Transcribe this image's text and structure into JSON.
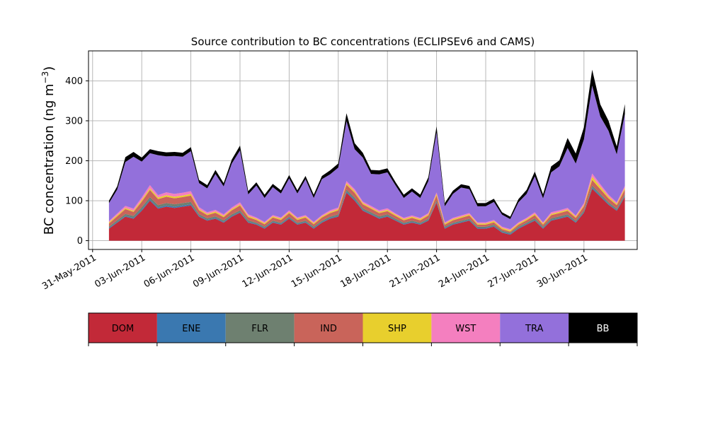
{
  "chart_data": {
    "type": "area",
    "stacked": true,
    "title": "Source contribution to BC concentrations (ECLIPSEv6 and CAMS)",
    "ylabel": "BC concentration (ng m",
    "ylabel_sup": "−3",
    "ylabel_close": ")",
    "xlabel": "",
    "ylim": [
      -22,
      475
    ],
    "xlim": [
      "2011-05-30T18:00",
      "2011-07-03T06:00"
    ],
    "grid": true,
    "x_ticks": [
      {
        "date": "2011-05-31",
        "label": "31-May-2011"
      },
      {
        "date": "2011-06-03",
        "label": "03-Jun-2011"
      },
      {
        "date": "2011-06-06",
        "label": "06-Jun-2011"
      },
      {
        "date": "2011-06-09",
        "label": "09-Jun-2011"
      },
      {
        "date": "2011-06-12",
        "label": "12-Jun-2011"
      },
      {
        "date": "2011-06-15",
        "label": "15-Jun-2011"
      },
      {
        "date": "2011-06-18",
        "label": "18-Jun-2011"
      },
      {
        "date": "2011-06-21",
        "label": "21-Jun-2011"
      },
      {
        "date": "2011-06-24",
        "label": "24-Jun-2011"
      },
      {
        "date": "2011-06-27",
        "label": "27-Jun-2011"
      },
      {
        "date": "2011-06-30",
        "label": "30-Jun-2011"
      }
    ],
    "y_ticks": [
      0,
      100,
      200,
      300,
      400
    ],
    "legend_placement": "bottom",
    "x": [
      "2011-06-01T00:00",
      "2011-06-01T12:00",
      "2011-06-02T00:00",
      "2011-06-02T12:00",
      "2011-06-03T00:00",
      "2011-06-03T12:00",
      "2011-06-04T00:00",
      "2011-06-04T12:00",
      "2011-06-05T00:00",
      "2011-06-05T12:00",
      "2011-06-06T00:00",
      "2011-06-06T12:00",
      "2011-06-07T00:00",
      "2011-06-07T12:00",
      "2011-06-08T00:00",
      "2011-06-08T12:00",
      "2011-06-09T00:00",
      "2011-06-09T12:00",
      "2011-06-10T00:00",
      "2011-06-10T12:00",
      "2011-06-11T00:00",
      "2011-06-11T12:00",
      "2011-06-12T00:00",
      "2011-06-12T12:00",
      "2011-06-13T00:00",
      "2011-06-13T12:00",
      "2011-06-14T00:00",
      "2011-06-14T12:00",
      "2011-06-15T00:00",
      "2011-06-15T12:00",
      "2011-06-16T00:00",
      "2011-06-16T12:00",
      "2011-06-17T00:00",
      "2011-06-17T12:00",
      "2011-06-18T00:00",
      "2011-06-18T12:00",
      "2011-06-19T00:00",
      "2011-06-19T12:00",
      "2011-06-20T00:00",
      "2011-06-20T12:00",
      "2011-06-21T00:00",
      "2011-06-21T12:00",
      "2011-06-22T00:00",
      "2011-06-22T12:00",
      "2011-06-23T00:00",
      "2011-06-23T12:00",
      "2011-06-24T00:00",
      "2011-06-24T12:00",
      "2011-06-25T00:00",
      "2011-06-25T12:00",
      "2011-06-26T00:00",
      "2011-06-26T12:00",
      "2011-06-27T00:00",
      "2011-06-27T12:00",
      "2011-06-28T00:00",
      "2011-06-28T12:00",
      "2011-06-29T00:00",
      "2011-06-29T12:00",
      "2011-06-30T00:00",
      "2011-06-30T12:00",
      "2011-07-01T00:00",
      "2011-07-01T12:00",
      "2011-07-02T00:00",
      "2011-07-02T12:00"
    ],
    "series": [
      {
        "name": "DOM",
        "color": "#c22938",
        "values": [
          30,
          45,
          60,
          55,
          75,
          100,
          80,
          85,
          82,
          85,
          88,
          60,
          50,
          55,
          45,
          60,
          70,
          45,
          40,
          30,
          45,
          40,
          55,
          40,
          45,
          30,
          45,
          55,
          60,
          120,
          100,
          75,
          65,
          55,
          60,
          50,
          40,
          45,
          40,
          50,
          95,
          30,
          40,
          45,
          50,
          30,
          30,
          35,
          20,
          15,
          30,
          40,
          50,
          30,
          50,
          55,
          60,
          45,
          70,
          130,
          110,
          90,
          75,
          110
        ]
      },
      {
        "name": "ENE",
        "color": "#3a78b0",
        "values": [
          2,
          2,
          2,
          2,
          3,
          3,
          3,
          3,
          3,
          3,
          3,
          2,
          2,
          2,
          2,
          2,
          2,
          2,
          2,
          2,
          2,
          2,
          2,
          2,
          2,
          2,
          2,
          2,
          2,
          3,
          3,
          2,
          2,
          2,
          2,
          2,
          2,
          2,
          2,
          2,
          2,
          2,
          2,
          2,
          2,
          2,
          2,
          2,
          2,
          2,
          2,
          2,
          2,
          2,
          2,
          2,
          2,
          2,
          2,
          3,
          3,
          2,
          2,
          2
        ]
      },
      {
        "name": "FLR",
        "color": "#6e8070",
        "values": [
          3,
          4,
          5,
          5,
          6,
          6,
          6,
          6,
          6,
          6,
          6,
          4,
          4,
          4,
          4,
          4,
          4,
          4,
          3,
          3,
          3,
          3,
          3,
          3,
          3,
          3,
          3,
          3,
          4,
          5,
          5,
          4,
          4,
          4,
          4,
          3,
          3,
          3,
          3,
          3,
          4,
          3,
          3,
          3,
          3,
          3,
          3,
          3,
          3,
          3,
          3,
          3,
          4,
          3,
          4,
          4,
          4,
          3,
          4,
          5,
          4,
          4,
          3,
          4
        ]
      },
      {
        "name": "IND",
        "color": "#c9645a",
        "values": [
          8,
          10,
          12,
          10,
          14,
          18,
          15,
          16,
          15,
          15,
          16,
          10,
          8,
          9,
          8,
          10,
          12,
          8,
          7,
          6,
          8,
          7,
          9,
          7,
          8,
          6,
          8,
          9,
          10,
          12,
          12,
          10,
          9,
          8,
          8,
          7,
          6,
          7,
          6,
          8,
          12,
          5,
          6,
          7,
          8,
          5,
          5,
          6,
          4,
          3,
          5,
          6,
          8,
          5,
          8,
          8,
          9,
          7,
          10,
          14,
          12,
          10,
          9,
          12
        ]
      },
      {
        "name": "SHP",
        "color": "#e8cf2d",
        "values": [
          3,
          3,
          3,
          3,
          4,
          4,
          4,
          4,
          4,
          4,
          4,
          3,
          3,
          3,
          3,
          3,
          3,
          3,
          3,
          3,
          3,
          3,
          3,
          3,
          3,
          3,
          3,
          3,
          3,
          4,
          4,
          3,
          3,
          3,
          3,
          3,
          3,
          3,
          3,
          3,
          4,
          3,
          3,
          3,
          3,
          3,
          3,
          3,
          3,
          3,
          3,
          3,
          3,
          3,
          3,
          3,
          3,
          3,
          3,
          8,
          6,
          4,
          3,
          4
        ]
      },
      {
        "name": "WST",
        "color": "#f47fbf",
        "values": [
          3,
          4,
          5,
          5,
          6,
          8,
          6,
          7,
          7,
          7,
          7,
          5,
          4,
          4,
          4,
          4,
          5,
          4,
          3,
          3,
          3,
          3,
          4,
          3,
          3,
          3,
          3,
          4,
          4,
          5,
          5,
          4,
          4,
          4,
          4,
          3,
          3,
          3,
          3,
          3,
          4,
          3,
          3,
          3,
          3,
          3,
          3,
          3,
          3,
          3,
          3,
          3,
          4,
          3,
          4,
          4,
          4,
          3,
          5,
          8,
          6,
          5,
          4,
          5
        ]
      },
      {
        "name": "TRA",
        "color": "#9370db",
        "values": [
          45,
          60,
          110,
          130,
          90,
          80,
          100,
          90,
          95,
          90,
          100,
          60,
          60,
          90,
          70,
          110,
          130,
          50,
          80,
          60,
          70,
          60,
          80,
          60,
          90,
          60,
          90,
          90,
          100,
          150,
          100,
          110,
          80,
          90,
          90,
          70,
          50,
          60,
          50,
          80,
          150,
          40,
          60,
          70,
          60,
          40,
          40,
          45,
          30,
          25,
          50,
          60,
          90,
          60,
          100,
          110,
          150,
          130,
          160,
          220,
          170,
          160,
          120,
          180
        ]
      },
      {
        "name": "BB",
        "color": "#000000",
        "values": [
          6,
          8,
          12,
          12,
          10,
          10,
          10,
          10,
          10,
          10,
          10,
          8,
          8,
          10,
          8,
          10,
          12,
          8,
          8,
          8,
          8,
          8,
          8,
          8,
          8,
          8,
          8,
          10,
          10,
          20,
          15,
          12,
          10,
          10,
          10,
          8,
          8,
          8,
          8,
          10,
          15,
          8,
          8,
          8,
          8,
          8,
          8,
          8,
          6,
          6,
          8,
          10,
          12,
          10,
          15,
          15,
          25,
          25,
          30,
          40,
          30,
          25,
          20,
          25
        ]
      }
    ]
  }
}
